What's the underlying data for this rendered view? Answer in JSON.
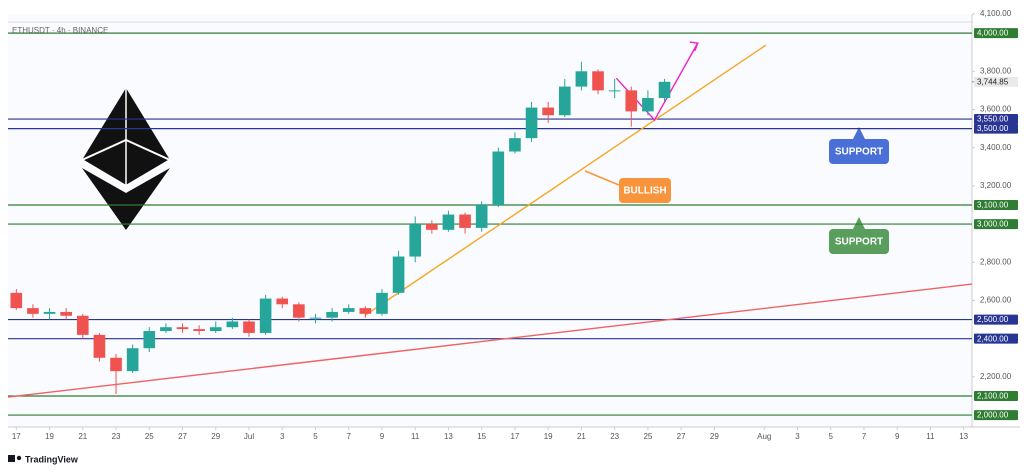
{
  "chart_data": {
    "type": "candlestick",
    "title": "ETHUSDT · 4h · BINANCE",
    "brand": "TradingView",
    "up_color": "#26a69a",
    "down_color": "#ef5350",
    "x": [
      0,
      1,
      2,
      3,
      4,
      5,
      6,
      7,
      8,
      9,
      10,
      11,
      12,
      13,
      14,
      15,
      16,
      17,
      18,
      19,
      20,
      21,
      22,
      23,
      24,
      25,
      26,
      27,
      28,
      29,
      30,
      31,
      32,
      33,
      34,
      35,
      36,
      37,
      38,
      39
    ],
    "open": [
      2640,
      2560,
      2530,
      2540,
      2520,
      2420,
      2300,
      2230,
      2350,
      2440,
      2460,
      2450,
      2440,
      2460,
      2490,
      2430,
      2610,
      2580,
      2510,
      2510,
      2540,
      2560,
      2530,
      2640,
      2830,
      3000,
      2970,
      3050,
      2980,
      3100,
      3380,
      3450,
      3610,
      3570,
      3720,
      3800,
      3700,
      3700,
      3590,
      3660
    ],
    "high": [
      2660,
      2580,
      2560,
      2560,
      2530,
      2430,
      2320,
      2370,
      2460,
      2480,
      2480,
      2470,
      2490,
      2510,
      2500,
      2630,
      2620,
      2590,
      2530,
      2560,
      2580,
      2570,
      2660,
      2860,
      3040,
      3020,
      3070,
      3060,
      3120,
      3400,
      3480,
      3640,
      3640,
      3760,
      3850,
      3810,
      3760,
      3720,
      3700,
      3760
    ],
    "low": [
      2550,
      2510,
      2500,
      2500,
      2400,
      2280,
      2110,
      2220,
      2330,
      2430,
      2430,
      2420,
      2430,
      2450,
      2410,
      2420,
      2560,
      2490,
      2480,
      2490,
      2530,
      2510,
      2520,
      2630,
      2800,
      2950,
      2960,
      2950,
      2960,
      3090,
      3370,
      3430,
      3530,
      3560,
      3700,
      3680,
      3660,
      3510,
      3570,
      3640
    ],
    "close": [
      2560,
      2530,
      2540,
      2520,
      2420,
      2300,
      2230,
      2350,
      2440,
      2460,
      2450,
      2440,
      2460,
      2490,
      2430,
      2610,
      2580,
      2510,
      2510,
      2540,
      2560,
      2530,
      2640,
      2830,
      3000,
      2970,
      3050,
      2980,
      3100,
      3380,
      3450,
      3610,
      3570,
      3720,
      3800,
      3700,
      3700,
      3590,
      3660,
      3745
    ],
    "xlim": [
      -0.5,
      57.5
    ],
    "ylim": [
      1948,
      4100
    ],
    "xticks": [
      {
        "value": 0,
        "label": "17"
      },
      {
        "value": 2,
        "label": "19"
      },
      {
        "value": 4,
        "label": "21"
      },
      {
        "value": 6,
        "label": "23"
      },
      {
        "value": 8,
        "label": "25"
      },
      {
        "value": 10,
        "label": "27"
      },
      {
        "value": 12,
        "label": "29"
      },
      {
        "value": 14,
        "label": "Jul"
      },
      {
        "value": 16,
        "label": "3"
      },
      {
        "value": 18,
        "label": "5"
      },
      {
        "value": 20,
        "label": "7"
      },
      {
        "value": 22,
        "label": "9"
      },
      {
        "value": 24,
        "label": "11"
      },
      {
        "value": 26,
        "label": "13"
      },
      {
        "value": 28,
        "label": "15"
      },
      {
        "value": 30,
        "label": "17"
      },
      {
        "value": 32,
        "label": "19"
      },
      {
        "value": 34,
        "label": "21"
      },
      {
        "value": 36,
        "label": "23"
      },
      {
        "value": 38,
        "label": "25"
      },
      {
        "value": 40,
        "label": "27"
      },
      {
        "value": 42,
        "label": "29"
      },
      {
        "value": 45,
        "label": "Aug"
      },
      {
        "value": 47,
        "label": "3"
      },
      {
        "value": 49,
        "label": "5"
      },
      {
        "value": 51,
        "label": "7"
      },
      {
        "value": 53,
        "label": "9"
      },
      {
        "value": 55,
        "label": "11"
      },
      {
        "value": 57,
        "label": "13"
      }
    ],
    "yticks": [
      {
        "value": 2200,
        "label": "2,200.00"
      },
      {
        "value": 2600,
        "label": "2,600.00"
      },
      {
        "value": 2800,
        "label": "2,800.00"
      },
      {
        "value": 3200,
        "label": "3,200.00"
      },
      {
        "value": 3400,
        "label": "3,400.00"
      },
      {
        "value": 3600,
        "label": "3,600.00"
      },
      {
        "value": 3800,
        "label": "3,800.00"
      },
      {
        "value": 4100,
        "label": "4,100.00"
      }
    ],
    "levels": [
      {
        "value": 4000,
        "label": "4,000.00",
        "color": "#2e7d32"
      },
      {
        "value": 3550,
        "label": "3,550.00",
        "color": "#283593"
      },
      {
        "value": 3500,
        "label": "3,500.00",
        "color": "#283593"
      },
      {
        "value": 3100,
        "label": "3,100.00",
        "color": "#2e7d32"
      },
      {
        "value": 3000,
        "label": "3,000.00",
        "color": "#2e7d32"
      },
      {
        "value": 2500,
        "label": "2,500.00",
        "color": "#283593"
      },
      {
        "value": 2400,
        "label": "2,400.00",
        "color": "#283593"
      },
      {
        "value": 2100,
        "label": "2,100.00",
        "color": "#2e7d32"
      },
      {
        "value": 2000,
        "label": "2,000.00",
        "color": "#2e7d32"
      }
    ],
    "last_price": {
      "value": 3744.85,
      "label": "3,744.85"
    },
    "trendlines": [
      {
        "color": "#f5a623",
        "x": [
          21,
          45.1
        ],
        "y": [
          2523,
          3937
        ]
      },
      {
        "color": "#f06262",
        "x": [
          -0.5,
          57.5
        ],
        "y": [
          2094,
          2686
        ]
      },
      {
        "color": "#ee22cc",
        "x": [
          36.1,
          38.4,
          41
        ],
        "y": [
          3764,
          3545,
          3948
        ]
      }
    ],
    "annotations": [
      {
        "text": "BULLISH",
        "color": "#f7943c"
      },
      {
        "text": "SUPPORT",
        "color": "#4a6fd6"
      },
      {
        "text": "SUPPORT",
        "color": "#5a9e5e"
      }
    ]
  }
}
